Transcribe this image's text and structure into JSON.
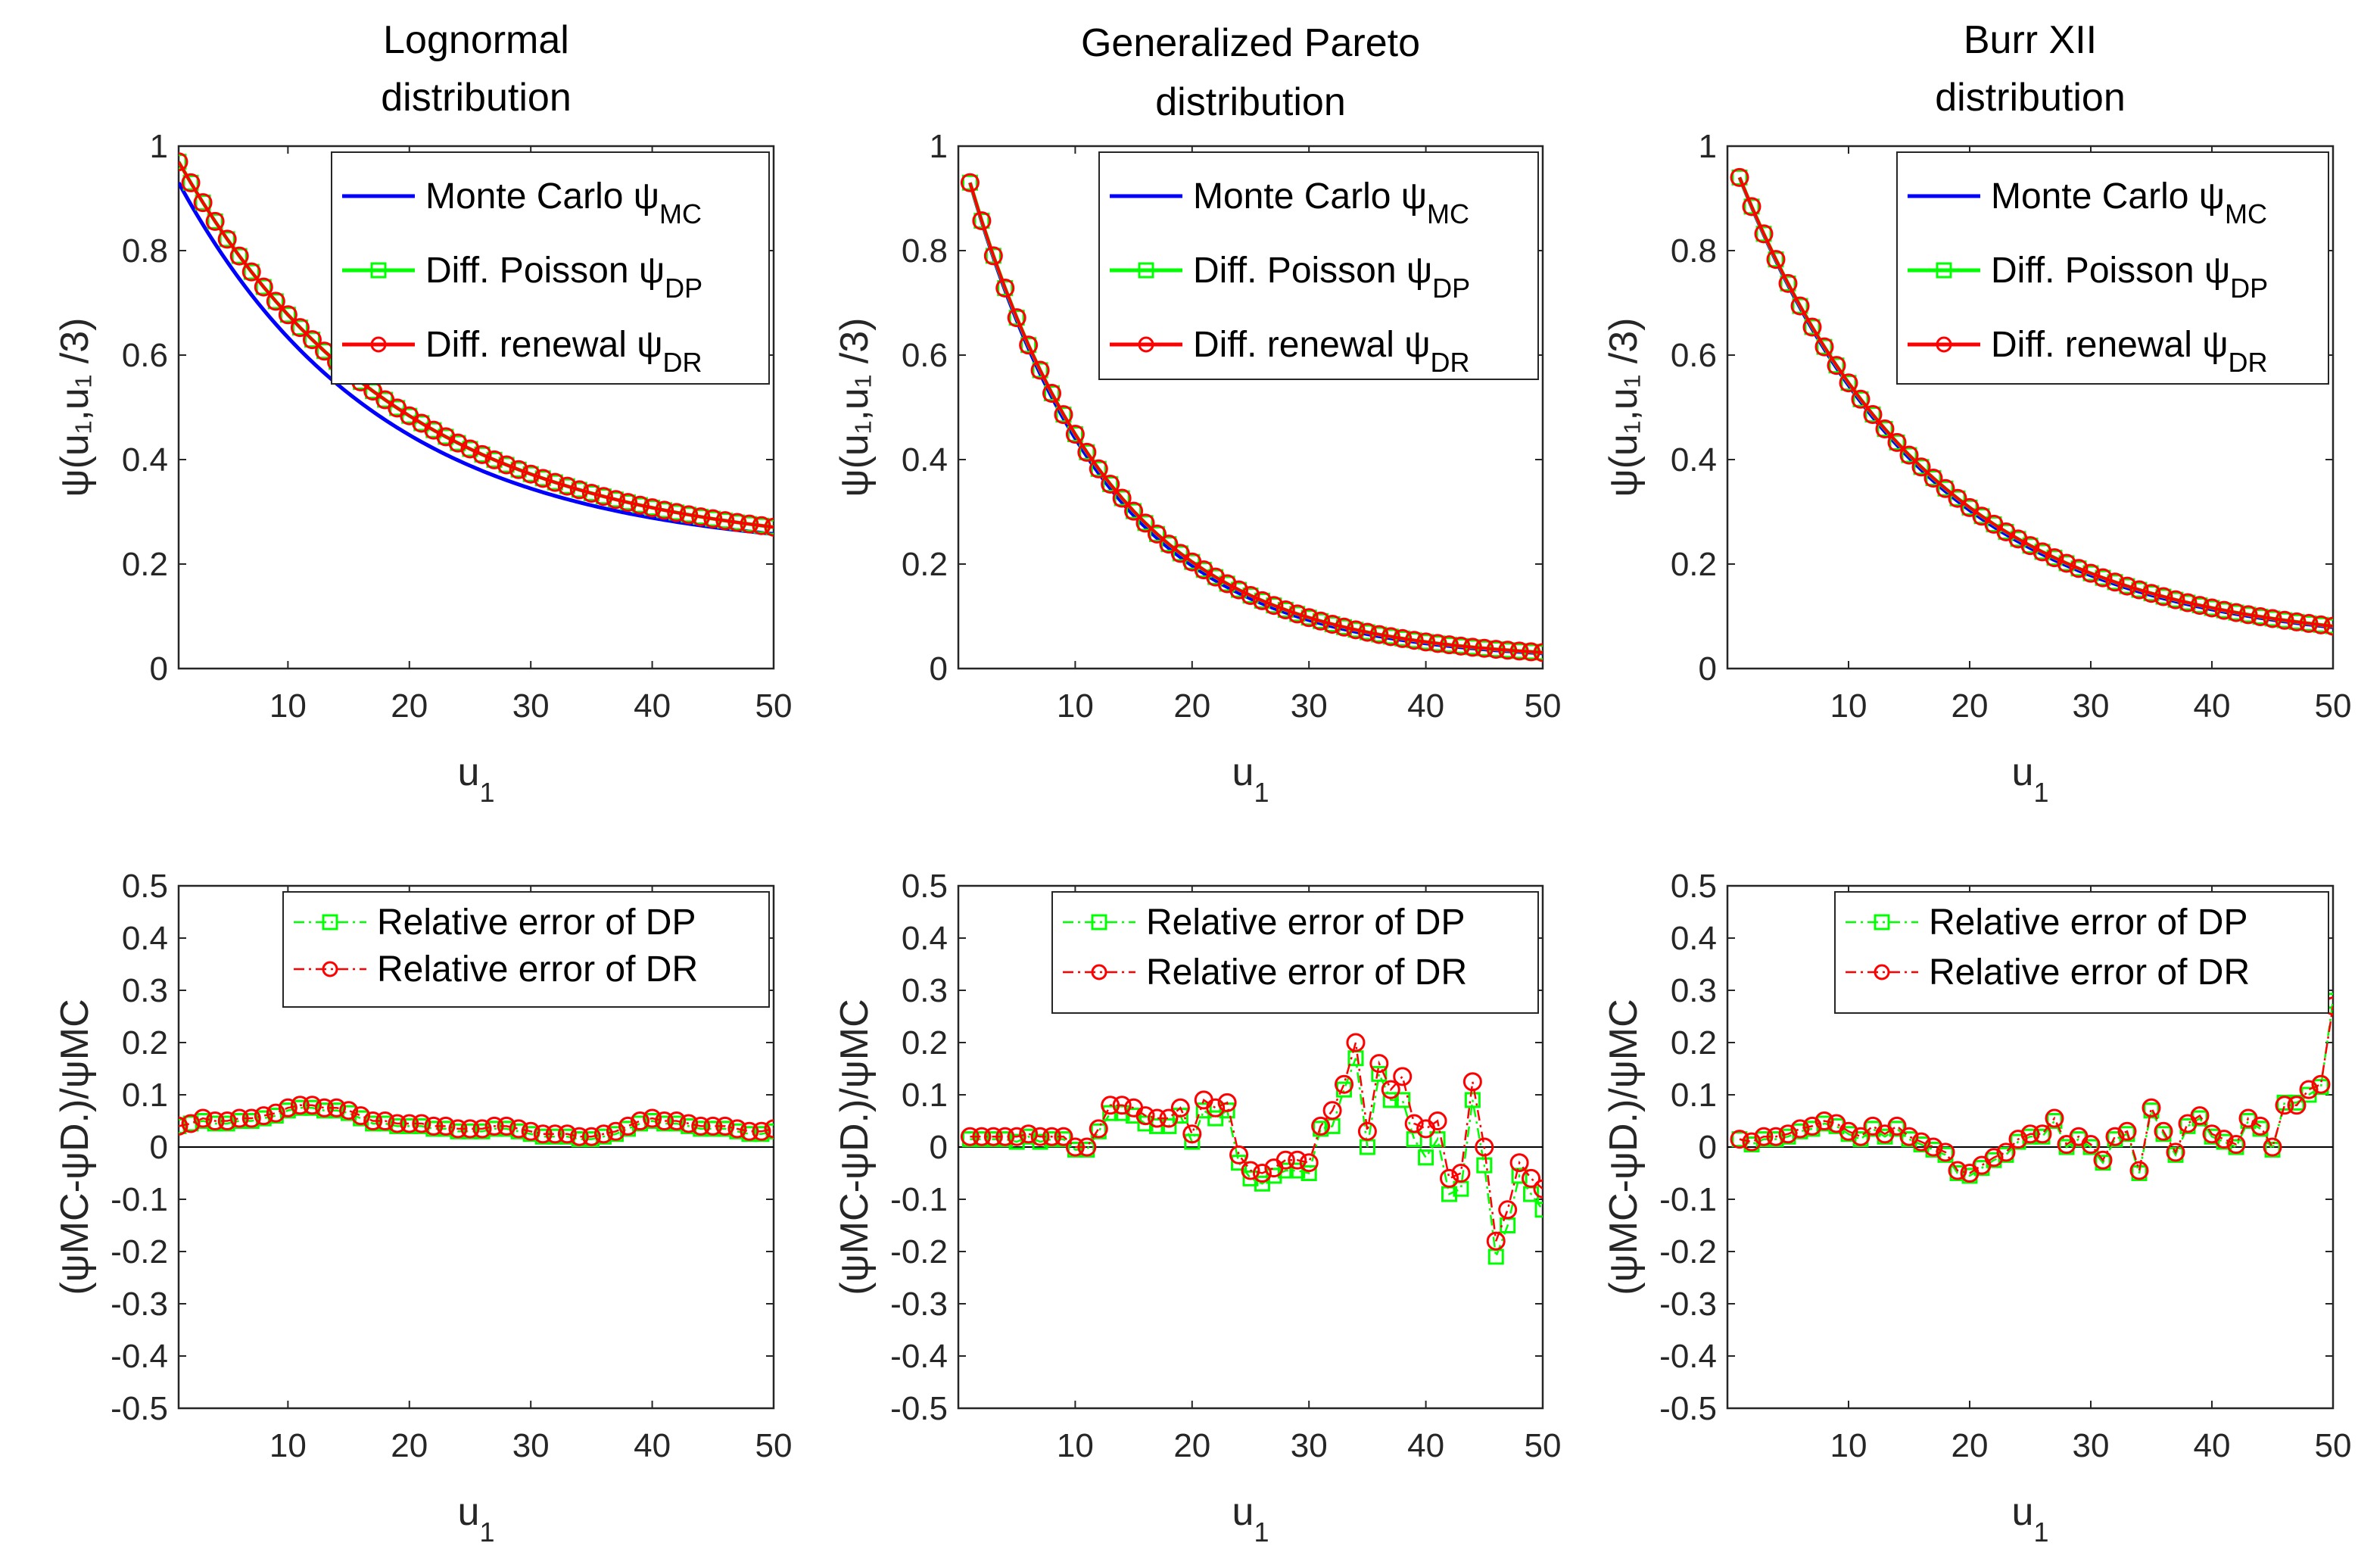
{
  "chart_data": [
    {
      "panel": "top-lognormal",
      "type": "line",
      "title_lines": [
        "Lognormal",
        "distribution"
      ],
      "xlabel": "u",
      "xlabel_sub": "1",
      "ylabel": "ψ(u₁,u₁ /3)",
      "xlim": [
        1,
        50
      ],
      "ylim": [
        0,
        1
      ],
      "xticks": [
        10,
        20,
        30,
        40,
        50
      ],
      "yticks": [
        0,
        0.2,
        0.4,
        0.6,
        0.8,
        1
      ],
      "ytick_labels": [
        "0",
        "0.2",
        "0.4",
        "0.6",
        "0.8",
        "1"
      ],
      "legend_position": "top-right",
      "legend": [
        {
          "label": "Monte Carlo ψ",
          "sub": "MC"
        },
        {
          "label": "Diff. Poisson ψ",
          "sub": "DP"
        },
        {
          "label": "Diff. renewal ψ",
          "sub": "DR"
        }
      ],
      "params": {
        "mc": [
          0.93,
          0.06,
          0.22
        ],
        "dp": [
          0.97,
          0.055,
          0.22
        ]
      }
    },
    {
      "panel": "top-gpd",
      "type": "line",
      "title_lines": [
        "Generalized Pareto",
        "distribution"
      ],
      "xlabel": "u",
      "xlabel_sub": "1",
      "ylabel": "ψ(u₁,u₁ /3)",
      "xlim": [
        0,
        50
      ],
      "ylim": [
        0,
        1
      ],
      "xticks": [
        10,
        20,
        30,
        40,
        50
      ],
      "yticks": [
        0,
        0.2,
        0.4,
        0.6,
        0.8,
        1
      ],
      "ytick_labels": [
        "0",
        "0.2",
        "0.4",
        "0.6",
        "0.8",
        "1"
      ],
      "legend_position": "top-right",
      "legend": [
        {
          "label": "Monte Carlo ψ",
          "sub": "MC"
        },
        {
          "label": "Diff. Poisson ψ",
          "sub": "DP"
        },
        {
          "label": "Diff. renewal ψ",
          "sub": "DR"
        }
      ],
      "params": {
        "mc": [
          0.93,
          0.085,
          0.015
        ],
        "dp": [
          0.93,
          0.083,
          0.015
        ]
      }
    },
    {
      "panel": "top-burr",
      "type": "line",
      "title_lines": [
        "Burr XII",
        "distribution"
      ],
      "xlabel": "u",
      "xlabel_sub": "1",
      "ylabel": "ψ(u₁,u₁ /3)",
      "xlim": [
        0,
        50
      ],
      "ylim": [
        0,
        1
      ],
      "xticks": [
        10,
        20,
        30,
        40,
        50
      ],
      "yticks": [
        0,
        0.2,
        0.4,
        0.6,
        0.8,
        1
      ],
      "ytick_labels": [
        "0",
        "0.2",
        "0.4",
        "0.6",
        "0.8",
        "1"
      ],
      "legend_position": "top-right",
      "legend": [
        {
          "label": "Monte Carlo ψ",
          "sub": "MC"
        },
        {
          "label": "Diff. Poisson ψ",
          "sub": "DP"
        },
        {
          "label": "Diff. renewal ψ",
          "sub": "DR"
        }
      ],
      "params": {
        "mc": [
          0.94,
          0.065,
          0.042
        ],
        "dp": [
          0.94,
          0.064,
          0.042
        ]
      }
    },
    {
      "panel": "bottom-lognormal",
      "type": "line",
      "xlabel": "u",
      "xlabel_sub": "1",
      "ylabel": "(ψMC-ψD.)/ψMC",
      "xlim": [
        1,
        50
      ],
      "ylim": [
        -0.5,
        0.5
      ],
      "xticks": [
        10,
        20,
        30,
        40,
        50
      ],
      "yticks": [
        -0.5,
        -0.4,
        -0.3,
        -0.2,
        -0.1,
        0,
        0.1,
        0.2,
        0.3,
        0.4,
        0.5
      ],
      "ytick_labels": [
        "-0.5",
        "-0.4",
        "-0.3",
        "-0.2",
        "-0.1",
        "0",
        "0.1",
        "0.2",
        "0.3",
        "0.4",
        "0.5"
      ],
      "legend_position": "top-right",
      "legend": [
        {
          "label": "Relative error of DP"
        },
        {
          "label": "Relative error of DR"
        }
      ],
      "x": [
        1,
        2,
        3,
        4,
        5,
        6,
        7,
        8,
        9,
        10,
        11,
        12,
        13,
        14,
        15,
        16,
        17,
        18,
        19,
        20,
        21,
        22,
        23,
        24,
        25,
        26,
        27,
        28,
        29,
        30,
        31,
        32,
        33,
        34,
        35,
        36,
        37,
        38,
        39,
        40,
        41,
        42,
        43,
        44,
        45,
        46,
        47,
        48,
        49,
        50
      ],
      "dp": [
        0.04,
        0.045,
        0.05,
        0.045,
        0.045,
        0.05,
        0.05,
        0.055,
        0.06,
        0.07,
        0.075,
        0.075,
        0.07,
        0.07,
        0.065,
        0.055,
        0.045,
        0.045,
        0.04,
        0.04,
        0.04,
        0.035,
        0.035,
        0.03,
        0.03,
        0.03,
        0.035,
        0.035,
        0.03,
        0.025,
        0.02,
        0.02,
        0.02,
        0.015,
        0.015,
        0.02,
        0.025,
        0.035,
        0.045,
        0.05,
        0.045,
        0.045,
        0.04,
        0.035,
        0.035,
        0.035,
        0.03,
        0.025,
        0.025,
        0.03
      ],
      "dr": [
        0.04,
        0.045,
        0.055,
        0.05,
        0.05,
        0.055,
        0.055,
        0.06,
        0.065,
        0.075,
        0.08,
        0.08,
        0.075,
        0.075,
        0.07,
        0.06,
        0.05,
        0.05,
        0.045,
        0.045,
        0.045,
        0.04,
        0.04,
        0.035,
        0.035,
        0.035,
        0.04,
        0.04,
        0.035,
        0.03,
        0.025,
        0.025,
        0.025,
        0.02,
        0.02,
        0.025,
        0.03,
        0.04,
        0.05,
        0.055,
        0.05,
        0.05,
        0.045,
        0.04,
        0.04,
        0.04,
        0.035,
        0.03,
        0.03,
        0.035
      ]
    },
    {
      "panel": "bottom-gpd",
      "type": "line",
      "xlabel": "u",
      "xlabel_sub": "1",
      "ylabel": "(ψMC-ψD.)/ψMC",
      "xlim": [
        0,
        50
      ],
      "ylim": [
        -0.5,
        0.5
      ],
      "xticks": [
        10,
        20,
        30,
        40,
        50
      ],
      "yticks": [
        -0.5,
        -0.4,
        -0.3,
        -0.2,
        -0.1,
        0,
        0.1,
        0.2,
        0.3,
        0.4,
        0.5
      ],
      "ytick_labels": [
        "-0.5",
        "-0.4",
        "-0.3",
        "-0.2",
        "-0.1",
        "0",
        "0.1",
        "0.2",
        "0.3",
        "0.4",
        "0.5"
      ],
      "legend_position": "top-right",
      "legend": [
        {
          "label": "Relative error of DP"
        },
        {
          "label": "Relative error of DR"
        }
      ],
      "x": [
        1,
        2,
        3,
        4,
        5,
        6,
        7,
        8,
        9,
        10,
        11,
        12,
        13,
        14,
        15,
        16,
        17,
        18,
        19,
        20,
        21,
        22,
        23,
        24,
        25,
        26,
        27,
        28,
        29,
        30,
        31,
        32,
        33,
        34,
        35,
        36,
        37,
        38,
        39,
        40,
        41,
        42,
        43,
        44,
        45,
        46,
        47,
        48,
        49,
        50
      ],
      "dp": [
        0.015,
        0.015,
        0.015,
        0.015,
        0.01,
        0.02,
        0.01,
        0.015,
        0.015,
        -0.005,
        -0.005,
        0.03,
        0.065,
        0.065,
        0.06,
        0.045,
        0.04,
        0.04,
        0.06,
        0.01,
        0.07,
        0.055,
        0.07,
        -0.03,
        -0.06,
        -0.07,
        -0.055,
        -0.045,
        -0.045,
        -0.05,
        0.035,
        0.04,
        0.11,
        0.17,
        0.0,
        0.14,
        0.09,
        0.09,
        0.015,
        -0.02,
        0.015,
        -0.09,
        -0.08,
        0.09,
        -0.035,
        -0.21,
        -0.15,
        -0.055,
        -0.09,
        -0.12
      ],
      "dr": [
        0.02,
        0.02,
        0.02,
        0.02,
        0.02,
        0.025,
        0.02,
        0.02,
        0.02,
        0.0,
        0.0,
        0.035,
        0.08,
        0.08,
        0.075,
        0.06,
        0.055,
        0.055,
        0.075,
        0.025,
        0.09,
        0.075,
        0.085,
        -0.015,
        -0.045,
        -0.05,
        -0.04,
        -0.025,
        -0.025,
        -0.03,
        0.04,
        0.07,
        0.12,
        0.2,
        0.03,
        0.16,
        0.11,
        0.135,
        0.045,
        0.035,
        0.05,
        -0.06,
        -0.05,
        0.125,
        0.0,
        -0.18,
        -0.12,
        -0.03,
        -0.06,
        -0.08
      ]
    },
    {
      "panel": "bottom-burr",
      "type": "line",
      "xlabel": "u",
      "xlabel_sub": "1",
      "ylabel": "(ψMC-ψD.)/ψMC",
      "xlim": [
        0,
        50
      ],
      "ylim": [
        -0.5,
        0.5
      ],
      "xticks": [
        10,
        20,
        30,
        40,
        50
      ],
      "yticks": [
        -0.5,
        -0.4,
        -0.3,
        -0.2,
        -0.1,
        0,
        0.1,
        0.2,
        0.3,
        0.4,
        0.5
      ],
      "ytick_labels": [
        "-0.5",
        "-0.4",
        "-0.3",
        "-0.2",
        "-0.1",
        "0",
        "0.1",
        "0.2",
        "0.3",
        "0.4",
        "0.5"
      ],
      "legend_position": "top-right",
      "legend": [
        {
          "label": "Relative error of DP"
        },
        {
          "label": "Relative error of DR"
        }
      ],
      "x": [
        1,
        2,
        3,
        4,
        5,
        6,
        7,
        8,
        9,
        10,
        11,
        12,
        13,
        14,
        15,
        16,
        17,
        18,
        19,
        20,
        21,
        22,
        23,
        24,
        25,
        26,
        27,
        28,
        29,
        30,
        31,
        32,
        33,
        34,
        35,
        36,
        37,
        38,
        39,
        40,
        41,
        42,
        43,
        44,
        45,
        46,
        47,
        48,
        49,
        50
      ],
      "dp": [
        0.015,
        0.005,
        0.015,
        0.015,
        0.02,
        0.03,
        0.035,
        0.045,
        0.04,
        0.025,
        0.015,
        0.035,
        0.02,
        0.035,
        0.015,
        0.005,
        -0.005,
        -0.015,
        -0.05,
        -0.055,
        -0.04,
        -0.025,
        -0.015,
        0.01,
        0.02,
        0.02,
        0.05,
        0.0,
        0.015,
        0.0,
        -0.03,
        0.015,
        0.025,
        -0.05,
        0.07,
        0.025,
        -0.015,
        0.04,
        0.055,
        0.02,
        0.01,
        0.0,
        0.05,
        0.035,
        -0.005,
        0.085,
        0.085,
        0.1,
        0.115,
        0.28
      ],
      "dr": [
        0.015,
        0.01,
        0.02,
        0.02,
        0.025,
        0.035,
        0.04,
        0.05,
        0.045,
        0.03,
        0.02,
        0.04,
        0.025,
        0.04,
        0.02,
        0.01,
        0.0,
        -0.01,
        -0.045,
        -0.05,
        -0.035,
        -0.02,
        -0.01,
        0.015,
        0.025,
        0.025,
        0.055,
        0.005,
        0.02,
        0.005,
        -0.025,
        0.02,
        0.03,
        -0.045,
        0.075,
        0.03,
        -0.01,
        0.045,
        0.06,
        0.025,
        0.015,
        0.005,
        0.055,
        0.04,
        0.0,
        0.08,
        0.08,
        0.11,
        0.12,
        0.27
      ]
    }
  ],
  "colors": {
    "mc": "#0000ff",
    "dp": "#00ff00",
    "dr": "#ff0000",
    "axis": "#262626",
    "zero_line": "#000000"
  }
}
